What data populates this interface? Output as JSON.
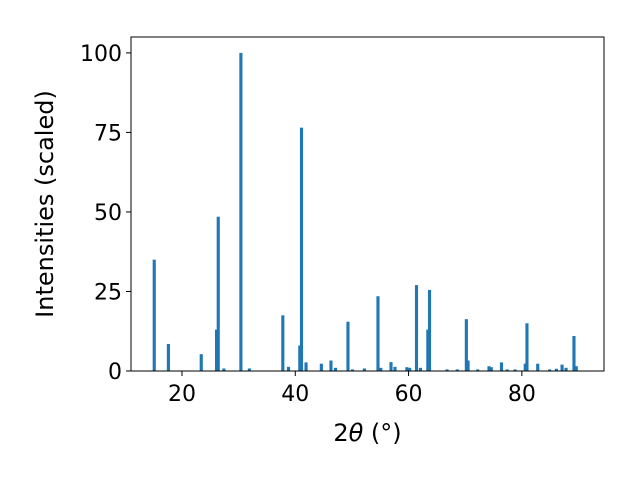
{
  "chart_data": {
    "type": "bar",
    "xlabel_prefix": "2",
    "xlabel_theta": "θ",
    "xlabel_suffix": " (°)",
    "ylabel": "Intensities (scaled)",
    "xlim": [
      11,
      94.5
    ],
    "ylim": [
      0,
      105
    ],
    "xticks": [
      20,
      40,
      60,
      80
    ],
    "yticks": [
      0,
      25,
      50,
      75,
      100
    ],
    "grid": false,
    "bar_width": 0.55,
    "bar_color": "#1f77b4",
    "x": [
      15.1,
      17.6,
      23.4,
      26.1,
      26.4,
      27.4,
      30.4,
      31.9,
      37.8,
      38.8,
      40.8,
      41.1,
      41.9,
      44.6,
      46.3,
      47.1,
      49.3,
      50.1,
      52.2,
      54.6,
      55.1,
      56.9,
      57.6,
      59.7,
      60.2,
      61.4,
      62.1,
      63.4,
      63.7,
      66.8,
      68.6,
      70.2,
      70.5,
      72.2,
      74.2,
      74.6,
      76.4,
      77.4,
      78.8,
      80.6,
      80.9,
      82.8,
      84.9,
      86.1,
      87.1,
      87.8,
      89.2,
      89.6
    ],
    "values": [
      35,
      8.5,
      5.3,
      13,
      48.5,
      0.8,
      100,
      0.8,
      17.5,
      1.3,
      8,
      76.5,
      2.7,
      2.3,
      3.3,
      1,
      15.5,
      0.5,
      0.8,
      23.5,
      1,
      2.8,
      1.3,
      1.2,
      1,
      27,
      1,
      13,
      25.5,
      0.5,
      0.5,
      16.3,
      3.3,
      0.5,
      1.5,
      1.2,
      2.7,
      0.5,
      0.5,
      2.3,
      15,
      2.3,
      0.5,
      0.7,
      2,
      1,
      11,
      1.5
    ]
  }
}
